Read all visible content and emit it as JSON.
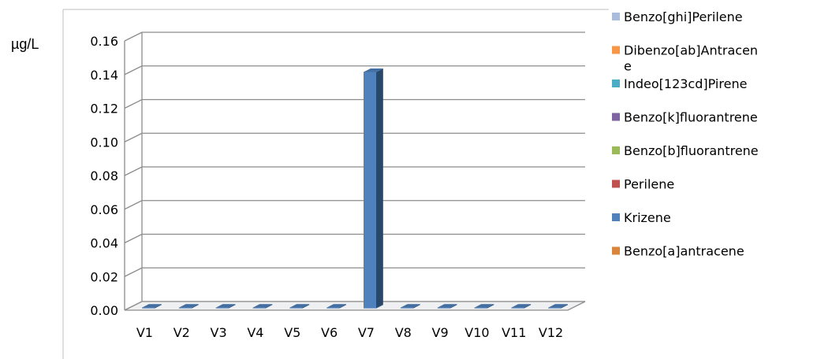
{
  "chart_data": {
    "type": "bar",
    "ylabel": "µg/L",
    "ylim": [
      0,
      0.16
    ],
    "yticks": [
      "0.00",
      "0.02",
      "0.04",
      "0.06",
      "0.08",
      "0.10",
      "0.12",
      "0.14",
      "0.16"
    ],
    "categories": [
      "V1",
      "V2",
      "V3",
      "V4",
      "V5",
      "V6",
      "V7",
      "V8",
      "V9",
      "V10",
      "V11",
      "V12"
    ],
    "grid": true,
    "legend_position": "right",
    "series": [
      {
        "name": "Benzo[ghi]Perilene",
        "color": "#A9BCDD",
        "values": [
          0,
          0,
          0,
          0,
          0,
          0,
          0,
          0,
          0,
          0,
          0,
          0
        ]
      },
      {
        "name": "Dibenzo[ab]Antracene",
        "color": "#F79646",
        "values": [
          0,
          0,
          0,
          0,
          0,
          0,
          0,
          0,
          0,
          0,
          0,
          0
        ]
      },
      {
        "name": "Indeo[123cd]Pirene",
        "color": "#4BACC6",
        "values": [
          0,
          0,
          0,
          0,
          0,
          0,
          0,
          0,
          0,
          0,
          0,
          0
        ]
      },
      {
        "name": "Benzo[k]fluorantrene",
        "color": "#8064A2",
        "values": [
          0,
          0,
          0,
          0,
          0,
          0,
          0,
          0,
          0,
          0,
          0,
          0
        ]
      },
      {
        "name": "Benzo[b]fluorantrene",
        "color": "#9BBB59",
        "values": [
          0,
          0,
          0,
          0,
          0,
          0,
          0,
          0,
          0,
          0,
          0,
          0
        ]
      },
      {
        "name": "Perilene",
        "color": "#C0504D",
        "values": [
          0,
          0,
          0,
          0,
          0,
          0,
          0,
          0,
          0,
          0,
          0,
          0
        ]
      },
      {
        "name": "Krizene",
        "color": "#4F81BD",
        "values": [
          0,
          0,
          0,
          0,
          0,
          0,
          0.14,
          0,
          0,
          0,
          0,
          0
        ]
      },
      {
        "name": "Benzo[a]antracene",
        "color": "#D9853B",
        "values": [
          0,
          0,
          0,
          0,
          0,
          0,
          0,
          0,
          0,
          0,
          0,
          0
        ]
      }
    ],
    "legend_lines": [
      [
        "Benzo[ghi]Perilene"
      ],
      [
        "Dibenzo[ab]Antracen",
        "e"
      ],
      [
        "Indeo[123cd]Pirene"
      ],
      [
        "Benzo[k]fluorantrene"
      ],
      [
        "Benzo[b]fluorantrene"
      ],
      [
        "Perilene"
      ],
      [
        "Krizene"
      ],
      [
        "Benzo[a]antracene"
      ]
    ]
  }
}
